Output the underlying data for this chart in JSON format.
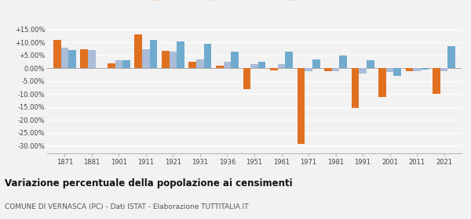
{
  "years": [
    1871,
    1881,
    1901,
    1911,
    1921,
    1931,
    1936,
    1951,
    1961,
    1971,
    1981,
    1991,
    2001,
    2011,
    2021
  ],
  "vernasca": [
    11.0,
    7.5,
    2.0,
    13.0,
    6.8,
    2.5,
    1.0,
    -8.0,
    -0.8,
    -29.5,
    -1.0,
    -15.5,
    -11.0,
    -1.0,
    -10.0
  ],
  "prov_pc": [
    8.0,
    7.0,
    3.0,
    7.5,
    6.5,
    3.5,
    2.5,
    1.5,
    1.5,
    -1.0,
    -1.0,
    -2.0,
    -1.5,
    -1.0,
    -1.0
  ],
  "em_ro": [
    7.0,
    0.0,
    3.0,
    11.0,
    10.5,
    9.5,
    6.5,
    2.5,
    6.5,
    3.5,
    5.0,
    3.0,
    -3.0,
    -0.5,
    8.5
  ],
  "em_ro_show": [
    1,
    0,
    1,
    1,
    1,
    1,
    1,
    1,
    1,
    1,
    1,
    1,
    1,
    1,
    1
  ],
  "color_vernasca": "#E07020",
  "color_prov": "#AABCD8",
  "color_em": "#70AACE",
  "title": "Variazione percentuale della popolazione ai censimenti",
  "subtitle": "COMUNE DI VERNASCA (PC) - Dati ISTAT - Elaborazione TUTTITALIA.IT",
  "yticks": [
    15,
    10,
    5,
    0,
    -5,
    -10,
    -15,
    -20,
    -25,
    -30
  ],
  "ylabels": [
    "+15.00%",
    "+10.00%",
    "+5.00%",
    "0.00%",
    "-5.00%",
    "-10.00%",
    "-15.00%",
    "-20.00%",
    "-25.00%",
    "-30.00%"
  ],
  "ylim": [
    -33,
    18
  ],
  "background": "#f2f2f2"
}
